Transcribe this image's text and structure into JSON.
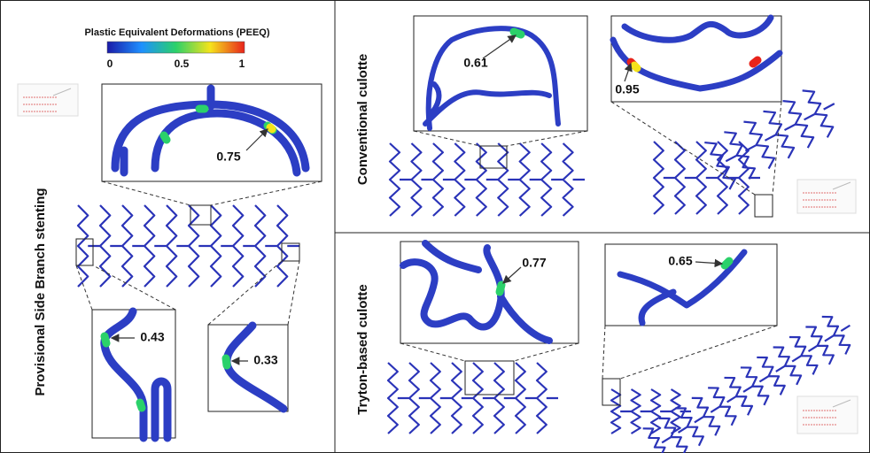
{
  "colorbar": {
    "title": "Plastic Equivalent Deformations (PEEQ)",
    "labels": [
      "0",
      "0.5",
      "1"
    ]
  },
  "panels": [
    {
      "label": "Provisional Side Branch  stenting",
      "annotations": [
        "0.75",
        "0.43",
        "0.33"
      ]
    },
    {
      "label": "Conventional culotte",
      "annotations": [
        "0.61",
        "0.95"
      ]
    },
    {
      "label": "Tryton-based culotte",
      "annotations": [
        "0.77",
        "0.65"
      ]
    }
  ]
}
